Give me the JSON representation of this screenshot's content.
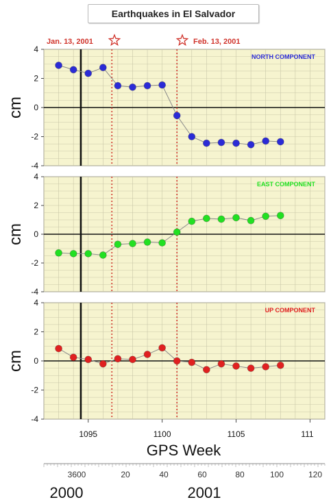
{
  "chart_data": {
    "type": "scatter",
    "title": "Earthquakes in El Salvador",
    "xlabel": "GPS Week",
    "ylabel": "cm",
    "x_ticks": [
      1095,
      1100,
      1105,
      "111"
    ],
    "xlim": [
      1092,
      1111
    ],
    "ylim": [
      -4,
      4
    ],
    "y_ticks": [
      4,
      2,
      0,
      -2,
      -4
    ],
    "grid": true,
    "events": [
      {
        "label": "Jan. 13, 2001",
        "week": 1096.6
      },
      {
        "label": "Feb. 13, 2001",
        "week": 1101.0
      }
    ],
    "secondary_axis": {
      "label_ticks": [
        "3600",
        "20",
        "40",
        "60",
        "80",
        "100",
        "120"
      ],
      "years": [
        "2000",
        "2001"
      ]
    },
    "panels": [
      {
        "name": "NORTH COMPONENT",
        "color": "#2b2bd6",
        "x": [
          1093,
          1094,
          1095,
          1096,
          1097,
          1098,
          1099,
          1100,
          1101,
          1102,
          1103,
          1104,
          1105,
          1106,
          1107,
          1108
        ],
        "y": [
          2.9,
          2.6,
          2.35,
          2.75,
          1.5,
          1.4,
          1.5,
          1.55,
          -0.55,
          -2.0,
          -2.45,
          -2.4,
          -2.45,
          -2.55,
          -2.3,
          -2.35
        ]
      },
      {
        "name": "EAST COMPONENT",
        "color": "#22e022",
        "x": [
          1093,
          1094,
          1095,
          1096,
          1097,
          1098,
          1099,
          1100,
          1101,
          1102,
          1103,
          1104,
          1105,
          1106,
          1107,
          1108
        ],
        "y": [
          -1.3,
          -1.35,
          -1.35,
          -1.45,
          -0.7,
          -0.65,
          -0.55,
          -0.6,
          0.15,
          0.9,
          1.1,
          1.05,
          1.15,
          0.95,
          1.25,
          1.3
        ]
      },
      {
        "name": "UP COMPONENT",
        "color": "#e02020",
        "x": [
          1093,
          1094,
          1095,
          1096,
          1097,
          1098,
          1099,
          1100,
          1101,
          1102,
          1103,
          1104,
          1105,
          1106,
          1107,
          1108
        ],
        "y": [
          0.85,
          0.25,
          0.1,
          -0.2,
          0.15,
          0.1,
          0.45,
          0.9,
          0.0,
          -0.1,
          -0.6,
          -0.2,
          -0.35,
          -0.5,
          -0.4,
          -0.3
        ]
      }
    ]
  }
}
